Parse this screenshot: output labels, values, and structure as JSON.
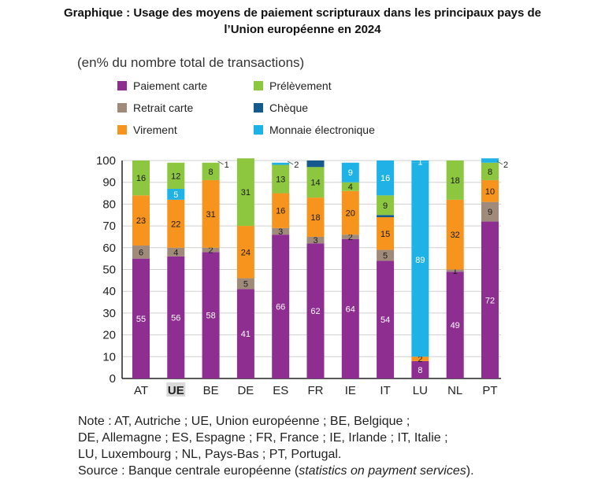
{
  "title_line1": "Graphique : Usage des moyens de paiement scripturaux dans les principaux pays de",
  "title_line2": "l’Union européenne en 2024",
  "note": {
    "line1": "Note : AT, Autriche ; UE, Union européenne ; BE, Belgique ;",
    "line2": "DE, Allemagne ; ES, Espagne ; FR, France ; IE, Irlande ; IT, Italie ;",
    "line3": "LU, Luxembourg ; NL, Pays-Bas ; PT, Portugal.",
    "source_prefix": "Source : Banque centrale européenne (",
    "source_italic": "statistics on payment services",
    "source_suffix": ")."
  },
  "chart_data": {
    "type": "bar",
    "stacked": true,
    "subtitle": "(en% du nombre total de transactions)",
    "categories": [
      "AT",
      "UE",
      "BE",
      "DE",
      "ES",
      "FR",
      "IE",
      "IT",
      "LU",
      "NL",
      "PT"
    ],
    "highlighted_category": "UE",
    "ylim": [
      0,
      100
    ],
    "yticks": [
      0,
      10,
      20,
      30,
      40,
      50,
      60,
      70,
      80,
      90,
      100
    ],
    "grid": true,
    "legend_position": "top",
    "series": [
      {
        "name": "Paiement carte",
        "color": "#8e2e91",
        "values": [
          55,
          56,
          58,
          41,
          66,
          62,
          64,
          54,
          8,
          49,
          72
        ],
        "labels": [
          "55",
          "56",
          "58",
          "41",
          "66",
          "62",
          "64",
          "54",
          "8",
          "49",
          "72"
        ]
      },
      {
        "name": "Retrait carte",
        "color": "#a08b7b",
        "values": [
          6,
          4,
          2,
          5,
          3,
          3,
          2,
          5,
          0,
          1,
          9
        ],
        "labels": [
          "6",
          "4",
          "2",
          "5",
          "3",
          "3",
          "2",
          "5",
          "",
          "1",
          "9"
        ]
      },
      {
        "name": "Virement",
        "color": "#f7941d",
        "values": [
          23,
          22,
          31,
          24,
          16,
          18,
          20,
          15,
          2,
          32,
          10
        ],
        "labels": [
          "23",
          "22",
          "31",
          "24",
          "16",
          "18",
          "20",
          "15",
          "2",
          "32",
          "10"
        ]
      },
      {
        "name": "Chèque",
        "color": "#145a8d",
        "values": [
          0,
          0,
          0,
          0,
          0,
          0,
          0,
          1,
          0,
          0,
          0
        ],
        "labels": [
          "",
          "",
          "",
          "",
          "",
          "",
          "",
          "",
          "",
          "",
          ""
        ]
      },
      {
        "name": "Monnaie électronique",
        "color": "#1fb2e6",
        "values": [
          0,
          5,
          0,
          0,
          0,
          0,
          0,
          0,
          89,
          0,
          0
        ],
        "labels": [
          "",
          "5",
          "",
          "",
          "",
          "",
          "",
          "",
          "89",
          "",
          ""
        ]
      },
      {
        "name": "Prélèvement",
        "color": "#8dc63f",
        "values": [
          16,
          12,
          8,
          31,
          13,
          14,
          4,
          9,
          0,
          18,
          8
        ],
        "labels": [
          "16",
          "12",
          "8",
          "31",
          "13",
          "14",
          "4",
          "9",
          "",
          "18",
          "8"
        ]
      },
      {
        "name": "Monnaie électronique (haut)",
        "color": "#1fb2e6",
        "values": [
          0,
          0,
          0,
          0,
          1,
          0,
          9,
          16,
          1,
          0,
          2
        ],
        "labels": [
          "",
          "",
          "",
          "",
          "",
          "",
          "9",
          "16",
          "1",
          "",
          ""
        ]
      },
      {
        "name": "Chèque (haut)",
        "color": "#145a8d",
        "values": [
          0,
          0,
          0,
          0,
          0,
          3,
          0,
          0,
          0,
          0,
          0
        ],
        "labels": [
          "",
          "",
          "",
          "",
          "",
          "",
          "",
          "",
          "",
          "",
          ""
        ]
      }
    ],
    "legend": [
      {
        "name": "Paiement carte",
        "color": "#8e2e91"
      },
      {
        "name": "Prélèvement",
        "color": "#8dc63f"
      },
      {
        "name": "Retrait carte",
        "color": "#a08b7b"
      },
      {
        "name": "Chèque",
        "color": "#145a8d"
      },
      {
        "name": "Virement",
        "color": "#f7941d"
      },
      {
        "name": "Monnaie électronique",
        "color": "#1fb2e6"
      }
    ],
    "outside_labels": [
      {
        "category": "BE",
        "text": "1"
      },
      {
        "category": "ES",
        "text": "2"
      },
      {
        "category": "PT",
        "text": "2"
      }
    ]
  }
}
